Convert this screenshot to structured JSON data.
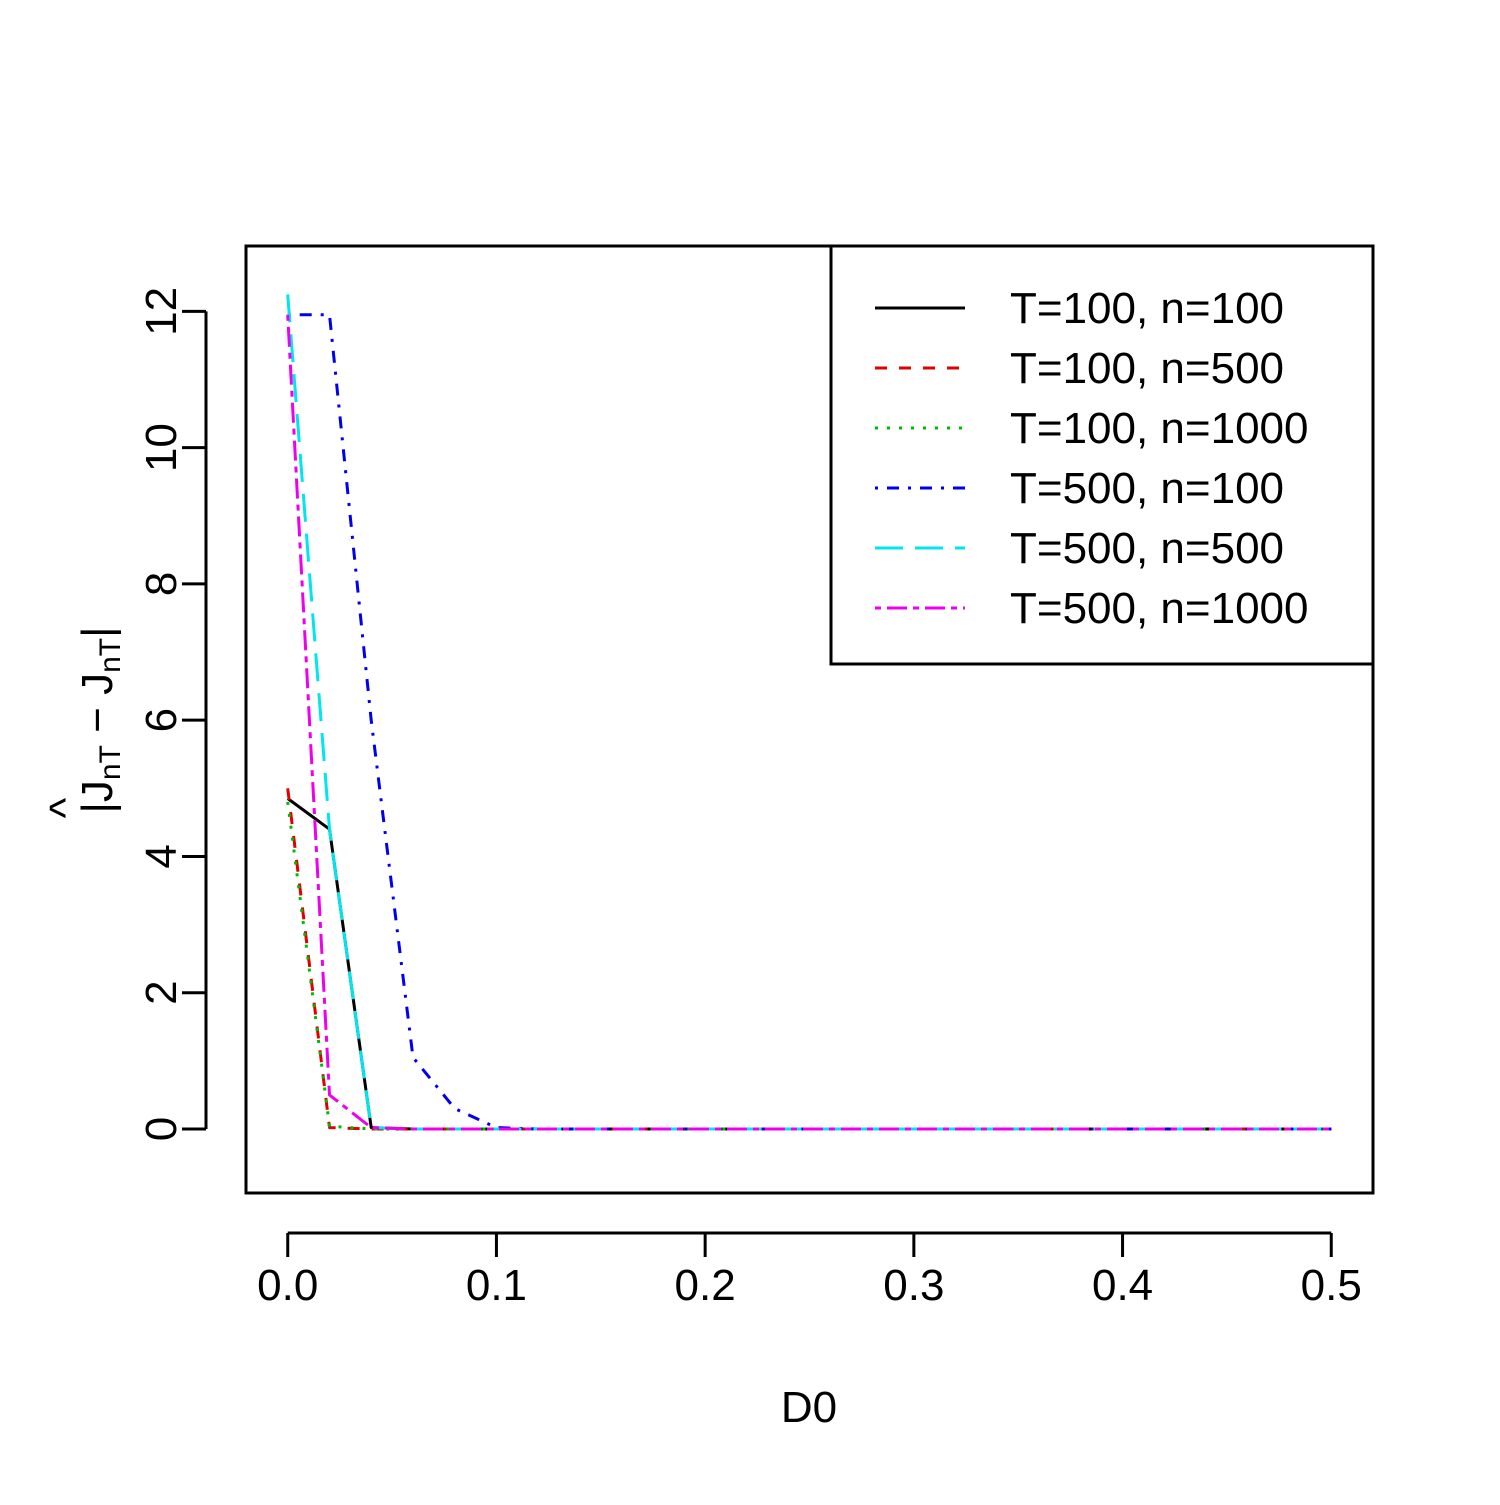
{
  "chart_data": {
    "type": "line",
    "title": "",
    "xlabel": "D0",
    "ylabel": {
      "base": "|",
      "j1": "J",
      "hat": "^",
      "sub1": "nT",
      "minus": " − ",
      "j2": "J",
      "sub2": "nT",
      "close": "|"
    },
    "xlim": [
      -0.02,
      0.52
    ],
    "ylim": [
      -0.94,
      12.96
    ],
    "x_ticks": [
      0.0,
      0.1,
      0.2,
      0.3,
      0.4,
      0.5
    ],
    "x_tick_labels": [
      "0.0",
      "0.1",
      "0.2",
      "0.3",
      "0.4",
      "0.5"
    ],
    "y_ticks": [
      0,
      2,
      4,
      6,
      8,
      10,
      12
    ],
    "y_tick_labels": [
      "0",
      "2",
      "4",
      "6",
      "8",
      "10",
      "12"
    ],
    "grid": false,
    "legend_position": "top-right",
    "x": [
      0.0,
      0.02,
      0.04,
      0.06,
      0.08,
      0.1,
      0.12,
      0.14,
      0.16,
      0.18,
      0.2,
      0.22,
      0.24,
      0.26,
      0.28,
      0.3,
      0.32,
      0.34,
      0.36,
      0.38,
      0.4,
      0.42,
      0.44,
      0.46,
      0.48,
      0.5
    ],
    "series": [
      {
        "name": "T=100, n=100",
        "color": "#000000",
        "dash": "solid",
        "values": [
          4.85,
          4.4,
          0.02,
          0,
          0,
          0,
          0,
          0,
          0,
          0,
          0,
          0,
          0,
          0,
          0,
          0,
          0,
          0,
          0,
          0,
          0,
          0,
          0,
          0,
          0,
          0
        ]
      },
      {
        "name": "T=100, n=500",
        "color": "#DF0000",
        "dash": "dashed",
        "values": [
          5.0,
          0.02,
          0,
          0,
          0,
          0,
          0,
          0,
          0,
          0,
          0,
          0,
          0,
          0,
          0,
          0,
          0,
          0,
          0,
          0,
          0,
          0,
          0,
          0,
          0,
          0
        ]
      },
      {
        "name": "T=100, n=1000",
        "color": "#00BB00",
        "dash": "dotted",
        "values": [
          4.8,
          0.04,
          0,
          0,
          0,
          0,
          0,
          0,
          0,
          0,
          0,
          0,
          0,
          0,
          0,
          0,
          0,
          0,
          0,
          0,
          0,
          0,
          0,
          0,
          0,
          0
        ]
      },
      {
        "name": "T=500, n=100",
        "color": "#0000EE",
        "dash": "dotdash",
        "values": [
          11.95,
          11.95,
          6.0,
          1.05,
          0.3,
          0.02,
          0,
          0,
          0,
          0,
          0,
          0,
          0,
          0,
          0,
          0,
          0,
          0,
          0,
          0,
          0,
          0,
          0,
          0,
          0,
          0
        ]
      },
      {
        "name": "T=500, n=500",
        "color": "#00E5EE",
        "dash": "longdash",
        "values": [
          12.25,
          4.4,
          0.02,
          0,
          0,
          0,
          0,
          0,
          0,
          0,
          0,
          0,
          0,
          0,
          0,
          0,
          0,
          0,
          0,
          0,
          0,
          0,
          0,
          0,
          0,
          0
        ]
      },
      {
        "name": "T=500, n=1000",
        "color": "#EE00EE",
        "dash": "twodash",
        "values": [
          11.95,
          0.5,
          0.02,
          0,
          0,
          0,
          0,
          0,
          0,
          0,
          0,
          0,
          0,
          0,
          0,
          0,
          0,
          0,
          0,
          0,
          0,
          0,
          0,
          0,
          0,
          0
        ]
      }
    ]
  }
}
